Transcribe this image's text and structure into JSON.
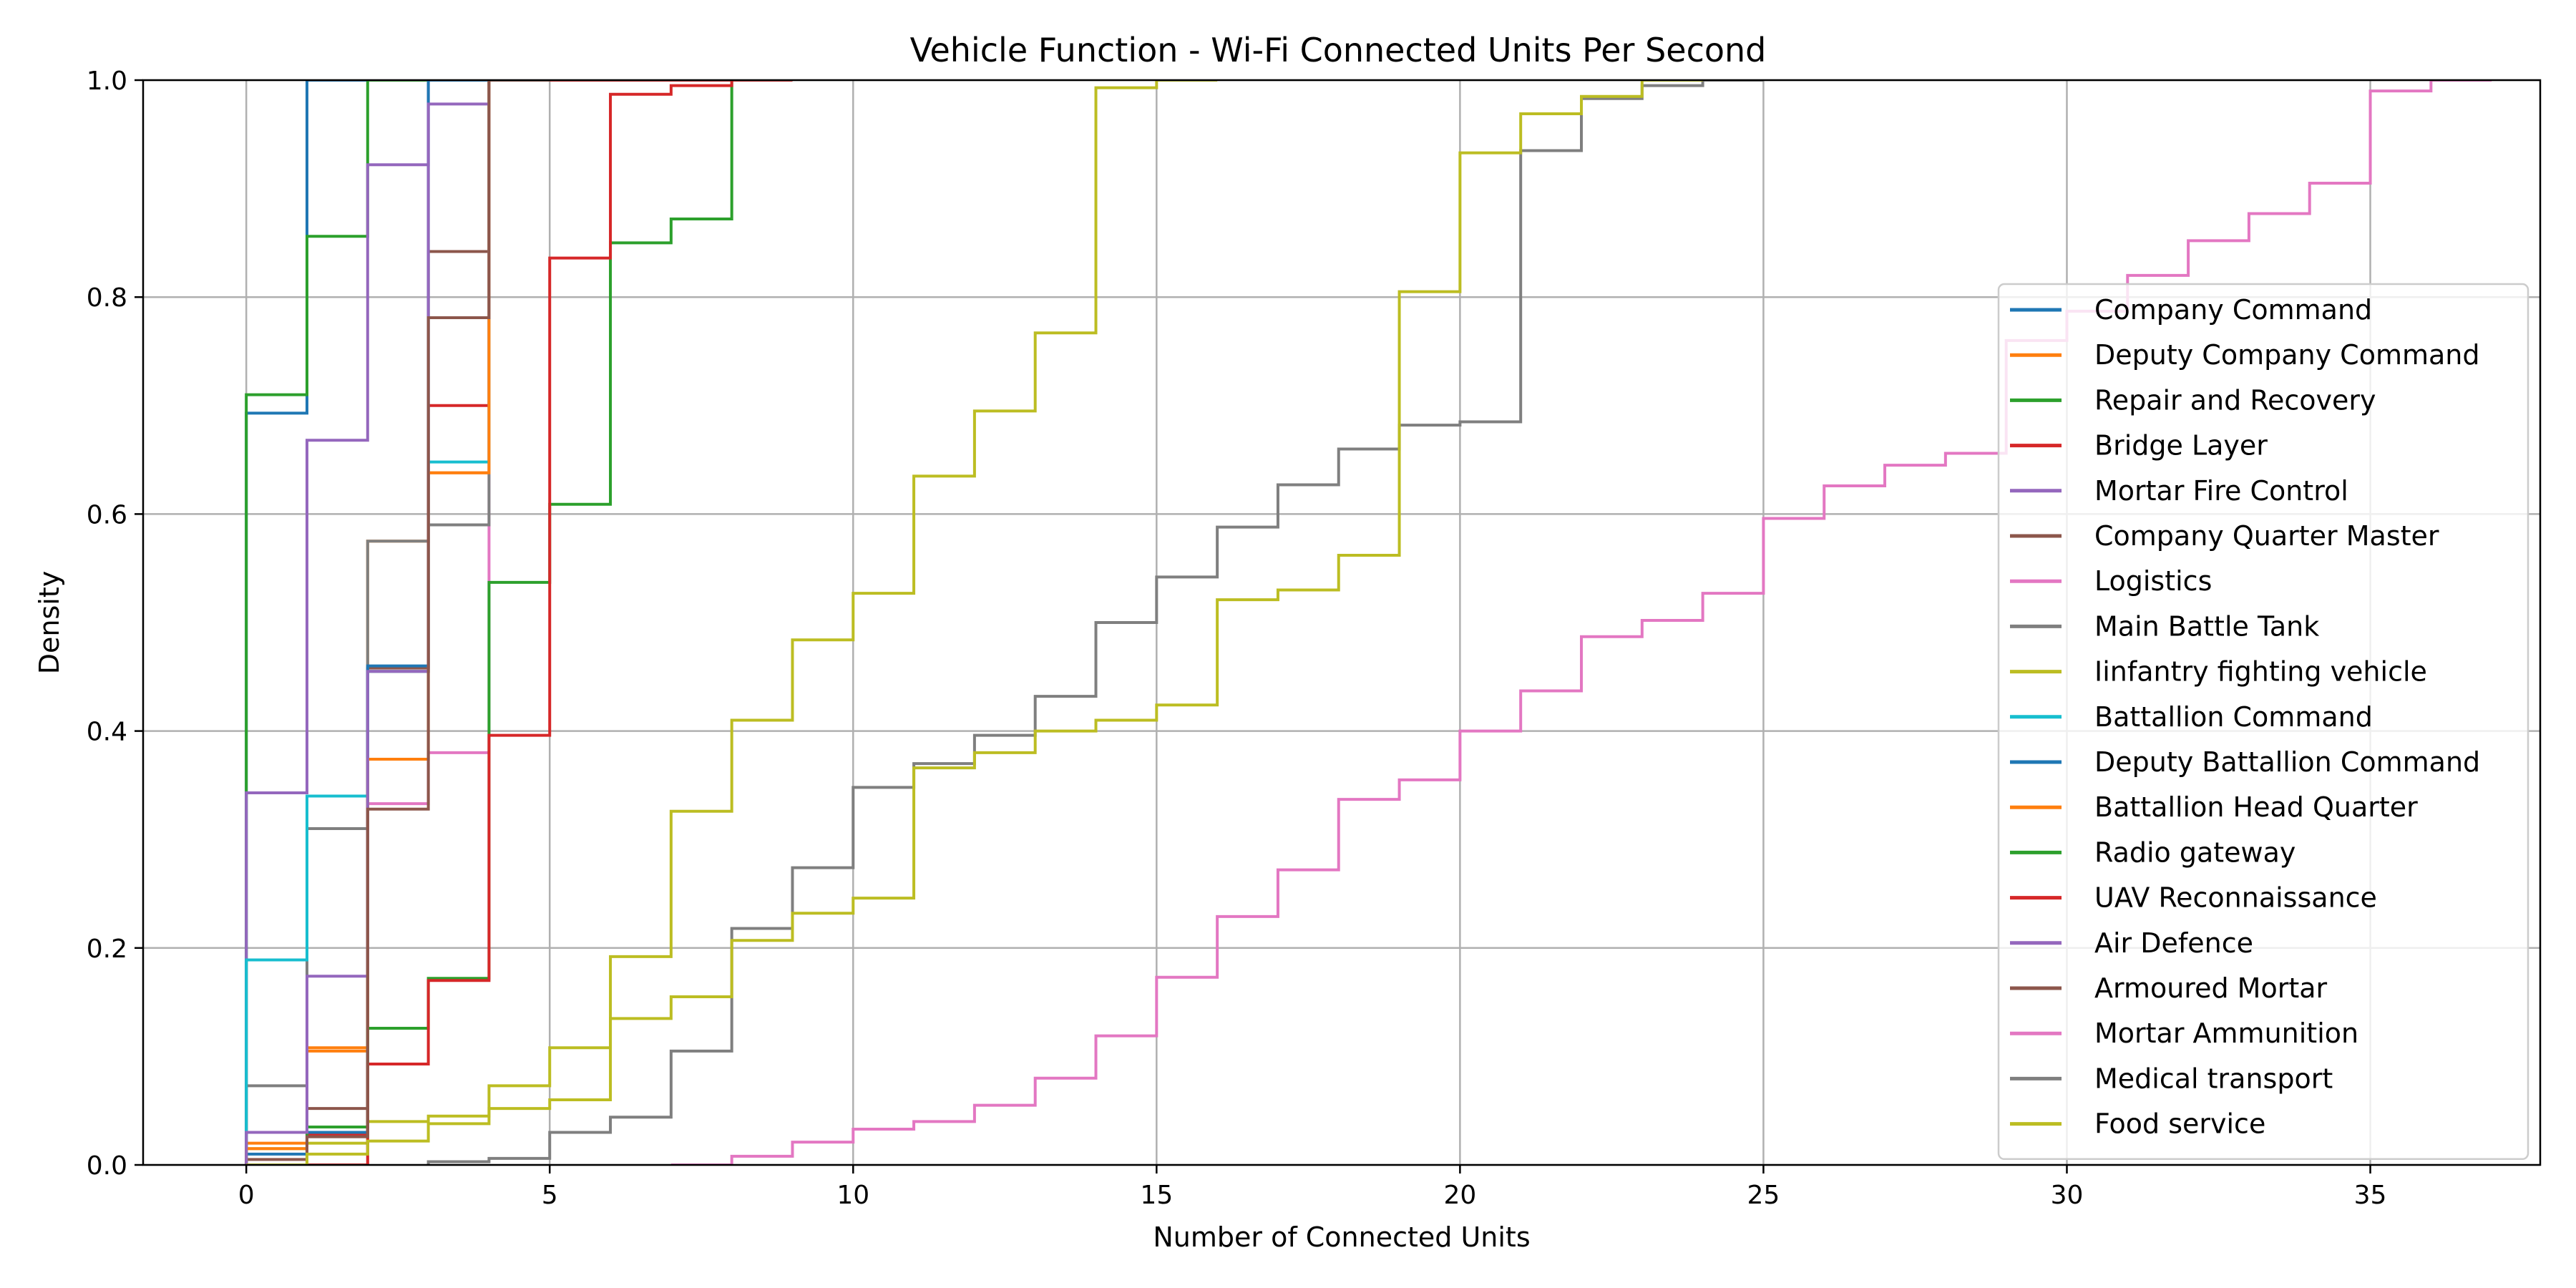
{
  "chart_data": {
    "type": "line",
    "title": "Vehicle Function - Wi-Fi Connected Units Per Second",
    "xlabel": "Number of Connected Units",
    "ylabel": "Density",
    "xlim": [
      -1.7,
      37.8
    ],
    "ylim": [
      0,
      1.0
    ],
    "xticks": [
      0,
      5,
      10,
      15,
      20,
      25,
      30,
      35
    ],
    "yticks": [
      0.0,
      0.2,
      0.4,
      0.6,
      0.8,
      1.0
    ],
    "xtick_labels": [
      "0",
      "5",
      "10",
      "15",
      "20",
      "25",
      "30",
      "35"
    ],
    "ytick_labels": [
      "0.0",
      "0.2",
      "0.4",
      "0.6",
      "0.8",
      "1.0"
    ],
    "grid": true,
    "legend_position": "right",
    "step_style": "cumulative-step",
    "series": [
      {
        "name": "Company Command",
        "color": "#1f77b4",
        "x": [
          0,
          1
        ],
        "y": [
          0.693,
          1.0
        ]
      },
      {
        "name": "Deputy Company Command",
        "color": "#ff7f0e",
        "x": [
          0,
          1,
          2,
          3,
          4
        ],
        "y": [
          0.02,
          0.105,
          0.575,
          0.638,
          1.0
        ]
      },
      {
        "name": "Repair and Recovery",
        "color": "#2ca02c",
        "x": [
          0,
          1,
          2
        ],
        "y": [
          0.71,
          0.856,
          1.0
        ]
      },
      {
        "name": "Bridge Layer",
        "color": "#d62728",
        "x": [
          0,
          1,
          2,
          3,
          4,
          5,
          6,
          7,
          8
        ],
        "y": [
          0.0,
          0.028,
          0.455,
          0.7,
          1.0,
          1.0,
          1.0,
          1.0,
          1.0
        ]
      },
      {
        "name": "Mortar Fire Control",
        "color": "#9467bd",
        "x": [
          0,
          1,
          2,
          3
        ],
        "y": [
          0.343,
          0.668,
          0.922,
          1.0
        ]
      },
      {
        "name": "Company Quarter Master",
        "color": "#8c564b",
        "x": [
          0,
          1,
          2,
          3,
          4
        ],
        "y": [
          0.005,
          0.052,
          0.458,
          0.842,
          1.0
        ]
      },
      {
        "name": "Logistics",
        "color": "#e377c2",
        "x": [
          0,
          1,
          2,
          3,
          4
        ],
        "y": [
          0.0,
          0.0,
          0.333,
          0.38,
          1.0
        ]
      },
      {
        "name": "Main Battle Tank",
        "color": "#7f7f7f",
        "x": [
          0,
          1,
          2,
          3,
          4
        ],
        "y": [
          0.073,
          0.31,
          0.575,
          0.59,
          1.0
        ]
      },
      {
        "name": "Iinfantry fighting vehicle",
        "color": "#bcbd22",
        "x": [
          0,
          1,
          2,
          3,
          4,
          5,
          6,
          7,
          8,
          9,
          10,
          11,
          12,
          13,
          14,
          15
        ],
        "y": [
          0.015,
          0.02,
          0.04,
          0.045,
          0.073,
          0.108,
          0.192,
          0.326,
          0.41,
          0.484,
          0.527,
          0.635,
          0.695,
          0.767,
          0.993,
          1.0
        ]
      },
      {
        "name": "Battallion Command",
        "color": "#17becf",
        "x": [
          0,
          1,
          2,
          3,
          4
        ],
        "y": [
          0.189,
          0.34,
          0.455,
          0.648,
          1.0
        ]
      },
      {
        "name": "Deputy Battallion Command",
        "color": "#1f77b4",
        "x": [
          0,
          1,
          2,
          3
        ],
        "y": [
          0.01,
          0.03,
          0.46,
          1.0
        ]
      },
      {
        "name": "Battallion Head Quarter",
        "color": "#ff7f0e",
        "x": [
          0,
          1,
          2,
          3,
          4
        ],
        "y": [
          0.015,
          0.108,
          0.374,
          0.638,
          1.0
        ]
      },
      {
        "name": "Radio gateway",
        "color": "#2ca02c",
        "x": [
          0,
          1,
          2,
          3,
          4,
          5,
          6,
          7,
          8
        ],
        "y": [
          0.0,
          0.035,
          0.126,
          0.172,
          0.537,
          0.609,
          0.85,
          0.872,
          1.0
        ]
      },
      {
        "name": "UAV Reconnaissance",
        "color": "#d62728",
        "x": [
          0,
          1,
          2,
          3,
          4,
          5,
          6,
          7,
          8
        ],
        "y": [
          0.0,
          0.0,
          0.093,
          0.17,
          0.396,
          0.836,
          0.987,
          0.995,
          1.0
        ]
      },
      {
        "name": "Air Defence",
        "color": "#9467bd",
        "x": [
          0,
          1,
          2,
          3
        ],
        "y": [
          0.03,
          0.174,
          0.455,
          0.978
        ]
      },
      {
        "name": "Armoured Mortar",
        "color": "#8c564b",
        "x": [
          0,
          1,
          2,
          3,
          4
        ],
        "y": [
          0.0,
          0.026,
          0.328,
          0.781,
          1.0
        ]
      },
      {
        "name": "Mortar Ammunition",
        "color": "#e377c2",
        "x": [
          7,
          8,
          9,
          10,
          11,
          12,
          13,
          14,
          15,
          16,
          17,
          18,
          19,
          20,
          21,
          22,
          23,
          24,
          25,
          26,
          27,
          28,
          29,
          30,
          31,
          32,
          33,
          34,
          35,
          36
        ],
        "y": [
          0.0,
          0.008,
          0.021,
          0.033,
          0.04,
          0.055,
          0.08,
          0.119,
          0.173,
          0.229,
          0.272,
          0.337,
          0.355,
          0.4,
          0.437,
          0.487,
          0.502,
          0.527,
          0.596,
          0.626,
          0.645,
          0.656,
          0.76,
          0.787,
          0.82,
          0.852,
          0.877,
          0.905,
          0.99,
          1.0
        ]
      },
      {
        "name": "Medical transport",
        "color": "#7f7f7f",
        "x": [
          3,
          4,
          5,
          6,
          7,
          8,
          9,
          10,
          11,
          12,
          13,
          14,
          15,
          16,
          17,
          18,
          19,
          20,
          21,
          22,
          23,
          24
        ],
        "y": [
          0.003,
          0.006,
          0.03,
          0.044,
          0.105,
          0.218,
          0.274,
          0.348,
          0.37,
          0.396,
          0.432,
          0.5,
          0.542,
          0.588,
          0.627,
          0.66,
          0.682,
          0.685,
          0.935,
          0.983,
          0.995,
          1.0
        ]
      },
      {
        "name": "Food service",
        "color": "#bcbd22",
        "x": [
          0,
          1,
          2,
          3,
          4,
          5,
          6,
          7,
          8,
          9,
          10,
          11,
          12,
          13,
          14,
          15,
          16,
          17,
          18,
          19,
          20,
          21,
          22,
          23
        ],
        "y": [
          0.0,
          0.01,
          0.022,
          0.038,
          0.052,
          0.06,
          0.135,
          0.155,
          0.207,
          0.232,
          0.246,
          0.366,
          0.38,
          0.4,
          0.41,
          0.424,
          0.521,
          0.53,
          0.562,
          0.805,
          0.933,
          0.969,
          0.985,
          1.0
        ]
      }
    ]
  }
}
